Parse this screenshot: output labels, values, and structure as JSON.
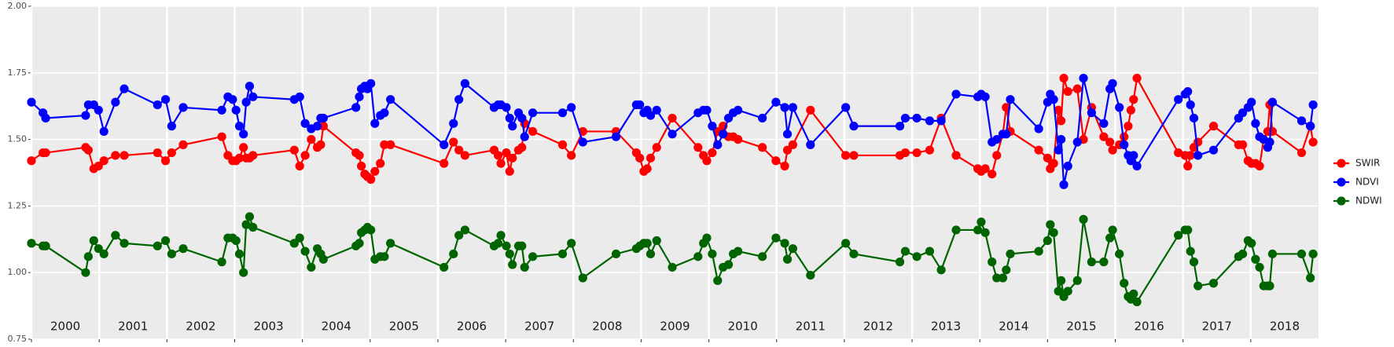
{
  "chart_data": {
    "type": "line",
    "x": [
      2000,
      2000.17,
      2000.21,
      2000.8,
      2000.84,
      2000.92,
      2000.99,
      2001.07,
      2001.24,
      2001.37,
      2001.86,
      2001.98,
      2002.07,
      2002.24,
      2002.81,
      2002.9,
      2002.97,
      2003.02,
      2003.07,
      2003.13,
      2003.17,
      2003.22,
      2003.27,
      2003.88,
      2003.96,
      2004.04,
      2004.13,
      2004.22,
      2004.27,
      2004.31,
      2004.79,
      2004.84,
      2004.87,
      2004.92,
      2004.96,
      2005.01,
      2005.07,
      2005.15,
      2005.21,
      2005.3,
      2006.09,
      2006.23,
      2006.31,
      2006.4,
      2006.83,
      2006.89,
      2006.93,
      2007.01,
      2007.06,
      2007.1,
      2007.19,
      2007.24,
      2007.28,
      2007.4,
      2007.84,
      2007.97,
      2008.14,
      2008.63,
      2008.93,
      2008.98,
      2009.04,
      2009.09,
      2009.14,
      2009.23,
      2009.46,
      2009.84,
      2009.92,
      2009.97,
      2010.05,
      2010.13,
      2010.21,
      2010.29,
      2010.36,
      2010.43,
      2010.79,
      2010.99,
      2011.12,
      2011.16,
      2011.24,
      2011.5,
      2012.02,
      2012.14,
      2012.82,
      2012.9,
      2013.07,
      2013.26,
      2013.43,
      2013.65,
      2013.97,
      2014.02,
      2014.08,
      2014.18,
      2014.25,
      2014.34,
      2014.39,
      2014.45,
      2014.87,
      2015,
      2015.04,
      2015.09,
      2015.16,
      2015.2,
      2015.24,
      2015.3,
      2015.44,
      2015.53,
      2015.65,
      2015.83,
      2015.92,
      2015.96,
      2016.06,
      2016.13,
      2016.19,
      2016.23,
      2016.27,
      2016.32,
      2016.93,
      2017.03,
      2017.07,
      2017.11,
      2017.16,
      2017.22,
      2017.45,
      2017.82,
      2017.88,
      2017.96,
      2018.01,
      2018.07,
      2018.13,
      2018.19,
      2018.25,
      2018.28,
      2018.32,
      2018.75,
      2018.88,
      2018.92
    ],
    "series": [
      {
        "name": "SWIR",
        "color": "#ff0000",
        "values": [
          1.42,
          1.45,
          1.45,
          1.47,
          1.46,
          1.39,
          1.4,
          1.42,
          1.44,
          1.44,
          1.45,
          1.42,
          1.45,
          1.48,
          1.51,
          1.44,
          1.42,
          1.42,
          1.43,
          1.47,
          1.43,
          1.43,
          1.44,
          1.46,
          1.4,
          1.44,
          1.5,
          1.47,
          1.48,
          1.55,
          1.45,
          1.44,
          1.4,
          1.37,
          1.36,
          1.35,
          1.38,
          1.41,
          1.48,
          1.48,
          1.41,
          1.49,
          1.46,
          1.44,
          1.46,
          1.44,
          1.41,
          1.45,
          1.38,
          1.43,
          1.46,
          1.47,
          1.56,
          1.53,
          1.48,
          1.44,
          1.53,
          1.53,
          1.45,
          1.43,
          1.38,
          1.39,
          1.43,
          1.47,
          1.58,
          1.47,
          1.44,
          1.42,
          1.45,
          1.53,
          1.55,
          1.51,
          1.51,
          1.5,
          1.47,
          1.42,
          1.4,
          1.46,
          1.48,
          1.61,
          1.44,
          1.44,
          1.44,
          1.45,
          1.45,
          1.46,
          1.58,
          1.44,
          1.39,
          1.38,
          1.39,
          1.37,
          1.44,
          1.52,
          1.62,
          1.53,
          1.46,
          1.43,
          1.39,
          1.41,
          1.61,
          1.57,
          1.73,
          1.68,
          1.69,
          1.5,
          1.62,
          1.51,
          1.49,
          1.46,
          1.48,
          1.51,
          1.55,
          1.61,
          1.65,
          1.73,
          1.45,
          1.44,
          1.4,
          1.44,
          1.47,
          1.49,
          1.55,
          1.48,
          1.48,
          1.42,
          1.41,
          1.41,
          1.4,
          1.5,
          1.53,
          1.63,
          1.53,
          1.45,
          1.55,
          1.49
        ]
      },
      {
        "name": "NDVI",
        "color": "#0000ff",
        "values": [
          1.64,
          1.6,
          1.58,
          1.59,
          1.63,
          1.63,
          1.61,
          1.53,
          1.64,
          1.69,
          1.63,
          1.65,
          1.55,
          1.62,
          1.61,
          1.66,
          1.65,
          1.61,
          1.55,
          1.52,
          1.64,
          1.7,
          1.66,
          1.65,
          1.66,
          1.56,
          1.54,
          1.55,
          1.58,
          1.58,
          1.62,
          1.66,
          1.69,
          1.7,
          1.69,
          1.71,
          1.56,
          1.59,
          1.6,
          1.65,
          1.48,
          1.56,
          1.65,
          1.71,
          1.62,
          1.63,
          1.63,
          1.62,
          1.58,
          1.55,
          1.6,
          1.58,
          1.51,
          1.6,
          1.6,
          1.62,
          1.49,
          1.51,
          1.63,
          1.63,
          1.6,
          1.61,
          1.59,
          1.61,
          1.52,
          1.6,
          1.61,
          1.61,
          1.55,
          1.48,
          1.52,
          1.58,
          1.6,
          1.61,
          1.58,
          1.64,
          1.62,
          1.52,
          1.62,
          1.48,
          1.62,
          1.55,
          1.55,
          1.58,
          1.58,
          1.57,
          1.57,
          1.67,
          1.66,
          1.67,
          1.66,
          1.49,
          1.5,
          1.52,
          1.52,
          1.65,
          1.54,
          1.64,
          1.67,
          1.65,
          1.46,
          1.5,
          1.33,
          1.4,
          1.49,
          1.73,
          1.6,
          1.56,
          1.69,
          1.71,
          1.62,
          1.48,
          1.44,
          1.42,
          1.44,
          1.4,
          1.65,
          1.67,
          1.68,
          1.63,
          1.58,
          1.44,
          1.46,
          1.58,
          1.6,
          1.62,
          1.64,
          1.56,
          1.51,
          1.5,
          1.47,
          1.49,
          1.64,
          1.57,
          1.55,
          1.63
        ]
      },
      {
        "name": "NDWI",
        "color": "#006400",
        "values": [
          1.11,
          1.1,
          1.1,
          1.0,
          1.06,
          1.12,
          1.09,
          1.07,
          1.14,
          1.11,
          1.1,
          1.12,
          1.07,
          1.09,
          1.04,
          1.13,
          1.13,
          1.12,
          1.07,
          1.0,
          1.18,
          1.21,
          1.17,
          1.11,
          1.13,
          1.08,
          1.02,
          1.09,
          1.07,
          1.05,
          1.1,
          1.11,
          1.15,
          1.16,
          1.17,
          1.16,
          1.05,
          1.06,
          1.06,
          1.11,
          1.02,
          1.07,
          1.14,
          1.16,
          1.1,
          1.11,
          1.14,
          1.1,
          1.07,
          1.03,
          1.1,
          1.1,
          1.02,
          1.06,
          1.07,
          1.11,
          0.98,
          1.07,
          1.09,
          1.1,
          1.11,
          1.11,
          1.07,
          1.12,
          1.02,
          1.06,
          1.11,
          1.13,
          1.07,
          0.97,
          1.02,
          1.03,
          1.07,
          1.08,
          1.06,
          1.13,
          1.11,
          1.05,
          1.09,
          0.99,
          1.11,
          1.07,
          1.04,
          1.08,
          1.06,
          1.08,
          1.01,
          1.16,
          1.16,
          1.19,
          1.15,
          1.04,
          0.98,
          0.98,
          1.01,
          1.07,
          1.08,
          1.12,
          1.18,
          1.15,
          0.93,
          0.97,
          0.91,
          0.93,
          0.97,
          1.2,
          1.04,
          1.04,
          1.13,
          1.16,
          1.07,
          0.96,
          0.91,
          0.9,
          0.92,
          0.89,
          1.14,
          1.16,
          1.16,
          1.08,
          1.04,
          0.95,
          0.96,
          1.06,
          1.07,
          1.12,
          1.11,
          1.05,
          1.02,
          0.95,
          0.95,
          0.95,
          1.07,
          1.07,
          0.98,
          1.07
        ]
      }
    ],
    "xlim": [
      2000,
      2019
    ],
    "xticks": [
      2000,
      2001,
      2002,
      2003,
      2004,
      2005,
      2006,
      2007,
      2008,
      2009,
      2010,
      2011,
      2012,
      2013,
      2014,
      2015,
      2016,
      2017,
      2018
    ],
    "ylim": [
      0.75,
      2.0
    ],
    "yticks": [
      {
        "value": 0.75,
        "label": "0.75"
      },
      {
        "value": 1.0,
        "label": "1.00"
      },
      {
        "value": 1.25,
        "label": "1.25"
      },
      {
        "value": 1.5,
        "label": "1.50"
      },
      {
        "value": 1.75,
        "label": "1.75"
      },
      {
        "value": 2.0,
        "label": "2.00"
      }
    ],
    "grid": true,
    "legend": "right"
  }
}
